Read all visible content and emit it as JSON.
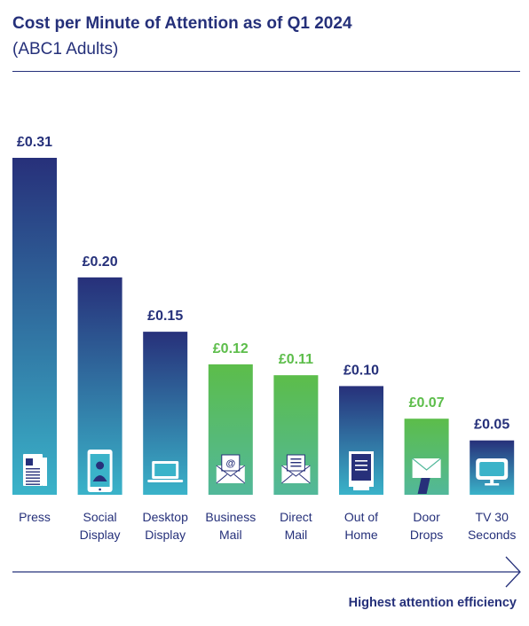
{
  "header": {
    "title": "Cost per Minute of Attention as of Q1 2024",
    "subtitle": "(ABC1 Adults)"
  },
  "footer": {
    "arrow_label": "Highest attention efficiency"
  },
  "colors": {
    "title": "#25307a",
    "navy_top": "#27307a",
    "navy_bottom": "#3ab3c9",
    "green": "#5cbd4a",
    "label_navy": "#25307a",
    "label_green": "#5cbd4a"
  },
  "chart_data": {
    "type": "bar",
    "title": "Cost per Minute of Attention as of Q1 2024",
    "subtitle": "(ABC1 Adults)",
    "categories": [
      "Press",
      "Social Display",
      "Desktop Display",
      "Business Mail",
      "Direct Mail",
      "Out of Home",
      "Door Drops",
      "TV 30 Seconds"
    ],
    "category_lines": [
      [
        "Press"
      ],
      [
        "Social",
        "Display"
      ],
      [
        "Desktop",
        "Display"
      ],
      [
        "Business",
        "Mail"
      ],
      [
        "Direct",
        "Mail"
      ],
      [
        "Out of",
        "Home"
      ],
      [
        "Door",
        "Drops"
      ],
      [
        "TV 30",
        "Seconds"
      ]
    ],
    "values": [
      0.31,
      0.2,
      0.15,
      0.12,
      0.11,
      0.1,
      0.07,
      0.05
    ],
    "value_labels": [
      "£0.31",
      "£0.20",
      "£0.15",
      "£0.12",
      "£0.11",
      "£0.10",
      "£0.07",
      "£0.05"
    ],
    "bar_styles": [
      "navy",
      "navy",
      "navy",
      "green",
      "green",
      "navy",
      "green",
      "navy"
    ],
    "icons": [
      "newspaper-icon",
      "smartphone-icon",
      "laptop-icon",
      "email-envelope-icon",
      "letter-envelope-icon",
      "billboard-icon",
      "letterbox-icon",
      "tv-icon"
    ],
    "ylim": [
      0,
      0.31
    ],
    "grid": false,
    "legend": "none"
  }
}
